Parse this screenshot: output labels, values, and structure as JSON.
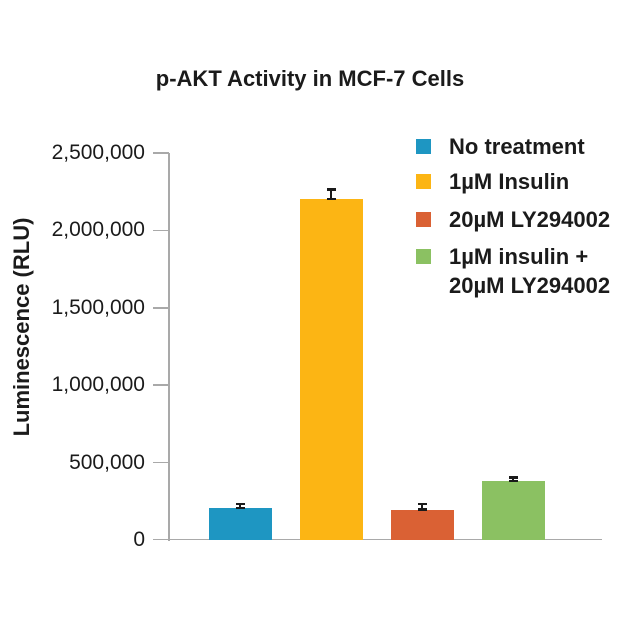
{
  "chart_data": {
    "type": "bar",
    "title": "p-AKT Activity in MCF-7 Cells",
    "ylabel": "Luminescence (RLU)",
    "xlabel": "",
    "ylim": [
      0,
      2500000
    ],
    "grid": false,
    "legend_position": "upper-right",
    "yticks": {
      "values": [
        0,
        500000,
        1000000,
        1500000,
        2000000,
        2500000
      ],
      "labels": [
        "0",
        "500,000",
        "1,000,000",
        "1,500,000",
        "2,000,000",
        "2,500,000"
      ]
    },
    "bars": [
      {
        "label": "No treatment",
        "value": 205000,
        "error_upper": 30000,
        "color": "#1E96C2",
        "legend_lines": [
          "No treatment"
        ]
      },
      {
        "label": "1µM Insulin",
        "value": 2200000,
        "error_upper": 65000,
        "color": "#FCB514",
        "legend_lines": [
          "1µM Insulin"
        ]
      },
      {
        "label": "20µM LY294002",
        "value": 195000,
        "error_upper": 40000,
        "color": "#DA6134",
        "legend_lines": [
          "20µM LY294002"
        ]
      },
      {
        "label": "1µM insulin + 20µM LY294002",
        "value": 380000,
        "error_upper": 25000,
        "color": "#8BC162",
        "legend_lines": [
          "1µM insulin +",
          "20µM LY294002"
        ]
      }
    ],
    "colors": {
      "axis": "#A9A9A9",
      "text": "#1B1B1B",
      "error_bar": "#1A1A1A",
      "background": "#FFFFFF"
    }
  }
}
